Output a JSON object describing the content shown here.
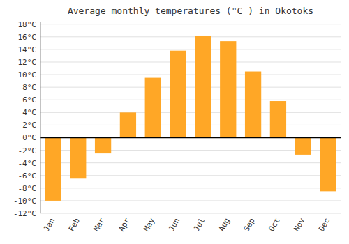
{
  "chart_data": {
    "type": "bar",
    "title": "Average monthly temperatures (°C ) in Okotoks",
    "categories": [
      "Jan",
      "Feb",
      "Mar",
      "Apr",
      "May",
      "Jun",
      "Jul",
      "Aug",
      "Sep",
      "Oct",
      "Nov",
      "Dec"
    ],
    "values": [
      -10,
      -6.5,
      -2.5,
      4,
      9.5,
      13.8,
      16.2,
      15.3,
      10.5,
      5.8,
      -2.7,
      -8.5
    ],
    "color": "#FFA726",
    "ylim": [
      -12,
      18.3
    ],
    "yticks": [
      {
        "value": -12,
        "label": "-12°C"
      },
      {
        "value": -10,
        "label": "-10°C"
      },
      {
        "value": -8,
        "label": "-8°C"
      },
      {
        "value": -6,
        "label": "-6°C"
      },
      {
        "value": -4,
        "label": "-4°C"
      },
      {
        "value": -2,
        "label": "-2°C"
      },
      {
        "value": 0,
        "label": "0°C"
      },
      {
        "value": 2,
        "label": "2°C"
      },
      {
        "value": 4,
        "label": "4°C"
      },
      {
        "value": 6,
        "label": "6°C"
      },
      {
        "value": 8,
        "label": "8°C"
      },
      {
        "value": 10,
        "label": "10°C"
      },
      {
        "value": 12,
        "label": "12°C"
      },
      {
        "value": 14,
        "label": "14°C"
      },
      {
        "value": 16,
        "label": "16°C"
      },
      {
        "value": 18,
        "label": "18°C"
      }
    ],
    "grid": true
  }
}
